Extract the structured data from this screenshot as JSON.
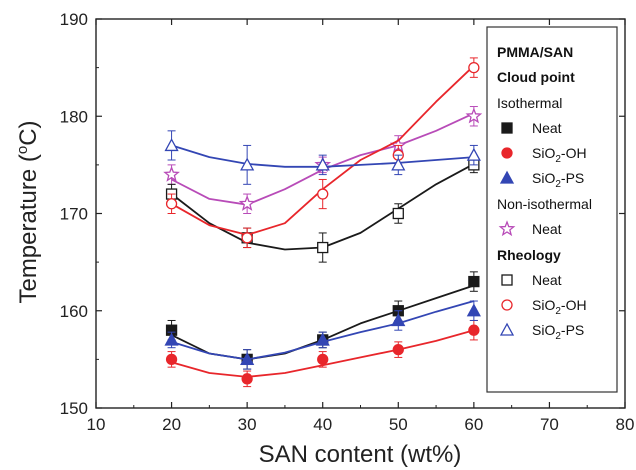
{
  "chart_data": {
    "type": "line",
    "xlabel": "SAN content (wt%)",
    "ylabel_main": "Temperature (",
    "ylabel_sup": "o",
    "ylabel_end": "C)",
    "xlim": [
      10,
      80
    ],
    "ylim": [
      150,
      190
    ],
    "xticks": [
      10,
      20,
      30,
      40,
      50,
      60,
      70,
      80
    ],
    "yticks": [
      150,
      160,
      170,
      180,
      190
    ],
    "legend_position": "right",
    "colors": {
      "black": "#1a1a1a",
      "red": "#e8262b",
      "blue": "#3346b4",
      "magenta": "#b84bb8"
    },
    "series": [
      {
        "name": "Neat",
        "group": "Isothermal",
        "marker": "square-filled",
        "color": "black",
        "x": [
          20,
          30,
          40,
          50,
          60
        ],
        "y": [
          158,
          155,
          157,
          160,
          163
        ],
        "err": [
          1,
          1,
          0.8,
          1,
          1
        ],
        "fit_x": [
          20,
          25,
          30,
          35,
          40,
          45,
          50,
          55,
          60
        ],
        "fit_y": [
          157.5,
          155.6,
          155.0,
          155.6,
          157.0,
          158.7,
          160.0,
          161.3,
          162.6
        ]
      },
      {
        "name": "SiO2-OH",
        "group": "Isothermal",
        "marker": "circle-filled",
        "color": "red",
        "x": [
          20,
          30,
          40,
          50,
          60
        ],
        "y": [
          155,
          153,
          155,
          156,
          158
        ],
        "err": [
          0.8,
          0.8,
          0.8,
          0.8,
          1
        ],
        "fit_x": [
          20,
          25,
          30,
          35,
          40,
          45,
          50,
          55,
          60
        ],
        "fit_y": [
          154.7,
          153.6,
          153.2,
          153.6,
          154.4,
          155.2,
          156.0,
          156.9,
          158.0
        ]
      },
      {
        "name": "SiO2-PS",
        "group": "Isothermal",
        "marker": "triangle-filled",
        "color": "blue",
        "x": [
          20,
          30,
          40,
          50,
          60
        ],
        "y": [
          157,
          155,
          157,
          159,
          160
        ],
        "err": [
          0.8,
          1,
          0.8,
          1,
          1
        ],
        "fit_x": [
          20,
          25,
          30,
          35,
          40,
          45,
          50,
          55,
          60
        ],
        "fit_y": [
          156.8,
          155.6,
          155.0,
          155.7,
          156.8,
          157.8,
          158.7,
          159.9,
          161.0
        ]
      },
      {
        "name": "Neat",
        "group": "Non-isothermal",
        "marker": "star-open",
        "color": "magenta",
        "x": [
          20,
          30,
          40,
          50,
          60
        ],
        "y": [
          174,
          171,
          175,
          177,
          180
        ],
        "err": [
          1,
          1,
          0.8,
          1,
          1
        ],
        "fit_x": [
          20,
          25,
          30,
          35,
          40,
          45,
          50,
          55,
          60
        ],
        "fit_y": [
          173.5,
          171.5,
          170.9,
          172.5,
          174.5,
          176.0,
          177.0,
          178.5,
          180.3
        ]
      },
      {
        "name": "Neat",
        "group": "Rheology",
        "marker": "square-open",
        "color": "black",
        "x": [
          20,
          30,
          40,
          50,
          60
        ],
        "y": [
          172,
          167.5,
          166.5,
          170,
          175
        ],
        "err": [
          1,
          1,
          1.5,
          1,
          0.8
        ],
        "fit_x": [
          20,
          25,
          30,
          35,
          40,
          45,
          50,
          55,
          60
        ],
        "fit_y": [
          172.0,
          169.0,
          167.0,
          166.3,
          166.5,
          168.0,
          170.5,
          173.0,
          175.1
        ]
      },
      {
        "name": "SiO2-OH",
        "group": "Rheology",
        "marker": "circle-open",
        "color": "red",
        "x": [
          20,
          30,
          40,
          50,
          60
        ],
        "y": [
          171,
          167.5,
          172,
          176,
          185
        ],
        "err": [
          1,
          1,
          1.5,
          1,
          1
        ],
        "fit_x": [
          20,
          25,
          30,
          35,
          40,
          45,
          50,
          55,
          60
        ],
        "fit_y": [
          171.0,
          168.8,
          167.8,
          169.0,
          172.5,
          175.5,
          177.5,
          181.5,
          185.2
        ]
      },
      {
        "name": "SiO2-PS",
        "group": "Rheology",
        "marker": "triangle-open",
        "color": "blue",
        "x": [
          20,
          30,
          40,
          50,
          60
        ],
        "y": [
          177,
          175,
          175,
          175,
          176
        ],
        "err": [
          1.5,
          2,
          1,
          1,
          1
        ],
        "fit_x": [
          20,
          25,
          30,
          35,
          40,
          45,
          50,
          55,
          60
        ],
        "fit_y": [
          177.0,
          175.8,
          175.1,
          174.8,
          174.8,
          175.0,
          175.2,
          175.5,
          175.8
        ]
      }
    ],
    "legend": {
      "title1": "PMMA/SAN",
      "title2": "Cloud point",
      "groups": [
        {
          "heading": "Isothermal",
          "bold": false,
          "entries": [
            {
              "label": "Neat",
              "marker": "square-filled",
              "color": "black"
            },
            {
              "label": "SiO",
              "sub": "2",
              "suffix": "-OH",
              "marker": "circle-filled",
              "color": "red"
            },
            {
              "label": "SiO",
              "sub": "2",
              "suffix": "-PS",
              "marker": "triangle-filled",
              "color": "blue"
            }
          ]
        },
        {
          "heading": "Non-isothermal",
          "bold": false,
          "entries": [
            {
              "label": "Neat",
              "marker": "star-open",
              "color": "magenta"
            }
          ]
        },
        {
          "heading": "Rheology",
          "bold": true,
          "entries": [
            {
              "label": "Neat",
              "marker": "square-open",
              "color": "black"
            },
            {
              "label": "SiO",
              "sub": "2",
              "suffix": "-OH",
              "marker": "circle-open",
              "color": "red"
            },
            {
              "label": "SiO",
              "sub": "2",
              "suffix": "-PS",
              "marker": "triangle-open",
              "color": "blue"
            }
          ]
        }
      ]
    }
  }
}
